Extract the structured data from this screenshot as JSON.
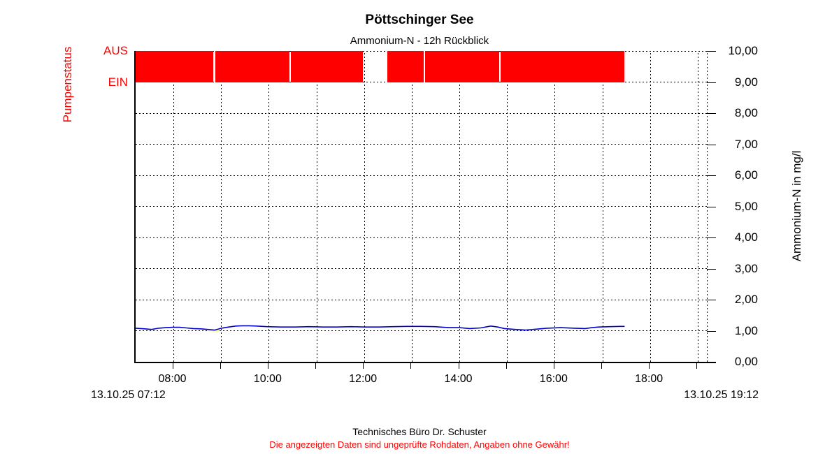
{
  "header": {
    "title": "Pöttschinger See",
    "subtitle": "Ammonium-N - 12h Rückblick"
  },
  "colors": {
    "pump_red": "#ff0000",
    "line_blue": "#0000cc",
    "line_yellow": "#ffff00",
    "warning_red": "#ff0000",
    "grid_black": "#000000"
  },
  "pump_axis": {
    "label": "Pumpenstatus",
    "tick_off": "AUS",
    "tick_on": "EIN"
  },
  "right_axis": {
    "title": "Ammonium-N in mg/l",
    "tick_labels": [
      "10,00",
      "9,00",
      "8,00",
      "7,00",
      "6,00",
      "5,00",
      "4,00",
      "3,00",
      "2,00",
      "1,00",
      "0,00"
    ]
  },
  "x_axis": {
    "start_label": "13.10.25 07:12",
    "end_label": "13.10.25 19:12",
    "hour_fractions": [
      0.0667,
      0.15,
      0.2333,
      0.3167,
      0.4,
      0.4833,
      0.5667,
      0.65,
      0.7333,
      0.8167,
      0.9,
      0.9833
    ],
    "labels": [
      {
        "f": 0.0667,
        "text": "08:00"
      },
      {
        "f": 0.2333,
        "text": "10:00"
      },
      {
        "f": 0.4,
        "text": "12:00"
      },
      {
        "f": 0.5667,
        "text": "14:00"
      },
      {
        "f": 0.7333,
        "text": "16:00"
      },
      {
        "f": 0.9,
        "text": "18:00"
      }
    ]
  },
  "footer": {
    "line1": "Technisches Büro Dr. Schuster",
    "line2": "Die angezeigten Daten sind ungeprüfte Rohdaten, Angaben ohne Gewähr!"
  },
  "chart_data": {
    "type": "line",
    "title": "Pöttschinger See",
    "subtitle": "Ammonium-N - 12h Rückblick",
    "x_range_labels": [
      "13.10.25 07:12",
      "13.10.25 19:12"
    ],
    "x_tick_labels": [
      "08:00",
      "10:00",
      "12:00",
      "14:00",
      "16:00",
      "18:00"
    ],
    "y_axis": {
      "label": "Ammonium-N in mg/l",
      "min": 0,
      "max": 10,
      "tick_step": 1,
      "grid": "dashed"
    },
    "pump_status": {
      "label": "Pumpenstatus",
      "off_label": "AUS",
      "on_label": "EIN",
      "band_values": [
        9,
        10
      ],
      "color": "#ff0000",
      "segments_fraction": [
        [
          0.0,
          0.1357
        ],
        [
          0.1388,
          0.2689
        ],
        [
          0.2714,
          0.3973
        ],
        [
          0.4401,
          0.5037
        ],
        [
          0.5061,
          0.6357
        ],
        [
          0.6381,
          0.8545
        ]
      ]
    },
    "series": [
      {
        "name": "Ammonium-N",
        "color": "#0000cc",
        "unit": "mg/l",
        "points": [
          [
            0.0,
            1.08
          ],
          [
            0.016,
            1.06
          ],
          [
            0.028,
            1.04
          ],
          [
            0.04,
            1.08
          ],
          [
            0.053,
            1.1
          ],
          [
            0.065,
            1.11
          ],
          [
            0.077,
            1.11
          ],
          [
            0.089,
            1.09
          ],
          [
            0.101,
            1.07
          ],
          [
            0.114,
            1.06
          ],
          [
            0.126,
            1.04
          ],
          [
            0.138,
            1.02
          ],
          [
            0.15,
            1.08
          ],
          [
            0.163,
            1.12
          ],
          [
            0.175,
            1.15
          ],
          [
            0.187,
            1.16
          ],
          [
            0.199,
            1.16
          ],
          [
            0.211,
            1.15
          ],
          [
            0.23,
            1.13
          ],
          [
            0.254,
            1.12
          ],
          [
            0.279,
            1.12
          ],
          [
            0.303,
            1.13
          ],
          [
            0.328,
            1.12
          ],
          [
            0.352,
            1.12
          ],
          [
            0.377,
            1.13
          ],
          [
            0.401,
            1.12
          ],
          [
            0.425,
            1.12
          ],
          [
            0.45,
            1.13
          ],
          [
            0.474,
            1.14
          ],
          [
            0.499,
            1.14
          ],
          [
            0.523,
            1.13
          ],
          [
            0.548,
            1.1
          ],
          [
            0.566,
            1.1
          ],
          [
            0.584,
            1.07
          ],
          [
            0.603,
            1.09
          ],
          [
            0.621,
            1.15
          ],
          [
            0.633,
            1.12
          ],
          [
            0.645,
            1.07
          ],
          [
            0.664,
            1.04
          ],
          [
            0.682,
            1.02
          ],
          [
            0.7,
            1.05
          ],
          [
            0.719,
            1.08
          ],
          [
            0.743,
            1.1
          ],
          [
            0.768,
            1.08
          ],
          [
            0.786,
            1.07
          ],
          [
            0.798,
            1.1
          ],
          [
            0.81,
            1.12
          ],
          [
            0.829,
            1.13
          ],
          [
            0.847,
            1.14
          ],
          [
            0.855,
            1.14
          ]
        ]
      },
      {
        "name": "reference-segment",
        "color": "#ffff00",
        "unit": "mg/l",
        "points": [
          [
            0.128,
            1.0
          ],
          [
            0.146,
            1.0
          ]
        ]
      }
    ]
  }
}
